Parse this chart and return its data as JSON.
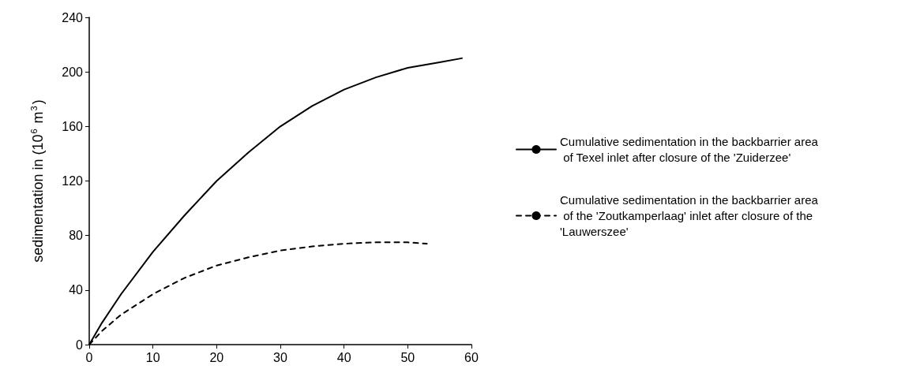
{
  "chart_data": {
    "type": "line",
    "ylabel": "sedimentation in (10$^{6}$ m$^{3}$)",
    "xlim": [
      0,
      60
    ],
    "xticks": [
      0,
      10,
      20,
      30,
      40,
      50,
      60
    ],
    "ylim": [
      0,
      240
    ],
    "yticks": [
      0,
      40,
      80,
      120,
      160,
      200,
      240
    ],
    "grid": false,
    "legend": "right",
    "marker": "none",
    "series": [
      {
        "name": "Cumulative sedimentation in the backbarrier area of Texel inlet after closure of the 'Zuiderzee'",
        "color": "#000000",
        "line_style": "solid",
        "x": [
          0,
          2,
          5,
          10,
          15,
          20,
          25,
          30,
          35,
          40,
          45,
          50,
          55,
          58.5
        ],
        "values": [
          0,
          16,
          37,
          68,
          95,
          120,
          141,
          160,
          175,
          187,
          196,
          203,
          207,
          210
        ]
      },
      {
        "name": "Cumulative sedimentation in the backbarrier area of the 'Zoutkamperlaag' inlet after closure of the 'Lauwerszee'",
        "color": "#000000",
        "line_style": "dashed",
        "x": [
          0,
          2,
          5,
          10,
          15,
          20,
          25,
          30,
          35,
          40,
          45,
          50,
          53
        ],
        "values": [
          0,
          10,
          22,
          37,
          49,
          58,
          64,
          69,
          72,
          74,
          75,
          75,
          74
        ]
      }
    ]
  }
}
